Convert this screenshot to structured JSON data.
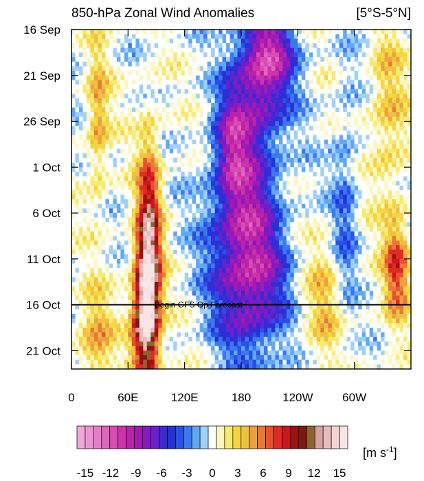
{
  "chart_data": {
    "type": "heatmap",
    "title": "850-hPa Zonal Wind Anomalies",
    "region": "[5°S-5°N]",
    "x_ticks": [
      "0",
      "60E",
      "120E",
      "180",
      "120W",
      "60W"
    ],
    "y_ticks": [
      "16 Sep",
      "21 Sep",
      "26 Sep",
      "1 Oct",
      "6 Oct",
      "11 Oct",
      "16 Oct",
      "21 Oct"
    ],
    "y_tick_days": [
      0,
      5,
      10,
      15,
      20,
      25,
      30,
      35
    ],
    "x_tick_lon": [
      0,
      60,
      120,
      180,
      240,
      300
    ],
    "x_range_lon": [
      0,
      360
    ],
    "y_range_days": [
      0,
      37
    ],
    "forecast_line_day": 30,
    "forecast_label": "Begin GFS Op Forecast",
    "colorbar": {
      "unit": "[m s-1]",
      "tick_labels": [
        "-15",
        "-12",
        "-9",
        "-6",
        "-3",
        "0",
        "3",
        "6",
        "9",
        "12",
        "15"
      ],
      "levels": [
        -16,
        -15,
        -14,
        -13,
        -12,
        -11,
        -10,
        -9,
        -8,
        -7,
        -6,
        -5,
        -4,
        -3,
        -2,
        -1,
        1,
        2,
        3,
        4,
        5,
        6,
        7,
        8,
        9,
        10,
        11,
        12,
        13,
        14,
        15,
        16
      ],
      "colors": [
        "#f0a8dc",
        "#ec94d4",
        "#e67cca",
        "#e064c0",
        "#d84cb4",
        "#cc34aa",
        "#bb22aa",
        "#a41ab0",
        "#8a18be",
        "#6a20cc",
        "#3a2ad2",
        "#2432d8",
        "#2a50e6",
        "#3c78f0",
        "#60a8f4",
        "#a0d0f8",
        "#ffffff",
        "#fcf6c0",
        "#f8ea70",
        "#f4d640",
        "#f0c040",
        "#eea040",
        "#ea7838",
        "#e85030",
        "#e02a24",
        "#c8181c",
        "#a01010",
        "#7c1a10",
        "#8c6430",
        "#d8a0a0",
        "#e8bcbc",
        "#f2d4d4",
        "#f8e4e4"
      ]
    },
    "fields": [
      {
        "lon": 82,
        "day": 24,
        "sx": 9,
        "sy": 8,
        "amp": 13
      },
      {
        "lon": 78,
        "day": 32,
        "sx": 10,
        "sy": 5,
        "amp": 12
      },
      {
        "lon": 28,
        "day": 10,
        "sx": 8,
        "sy": 6,
        "amp": 5
      },
      {
        "lon": 25,
        "day": 34,
        "sx": 14,
        "sy": 4,
        "amp": 5
      },
      {
        "lon": 200,
        "day": 6,
        "sx": 22,
        "sy": 5,
        "amp": -8
      },
      {
        "lon": 180,
        "day": 18,
        "sx": 25,
        "sy": 6,
        "amp": -7
      },
      {
        "lon": 190,
        "day": 28,
        "sx": 28,
        "sy": 6,
        "amp": -9
      },
      {
        "lon": 210,
        "day": 2,
        "sx": 20,
        "sy": 3,
        "amp": -6
      },
      {
        "lon": 170,
        "day": 12,
        "sx": 12,
        "sy": 4,
        "amp": -5
      },
      {
        "lon": 335,
        "day": 9,
        "sx": 14,
        "sy": 7,
        "amp": 4
      },
      {
        "lon": 345,
        "day": 26,
        "sx": 10,
        "sy": 4,
        "amp": 8
      },
      {
        "lon": 290,
        "day": 22,
        "sx": 10,
        "sy": 10,
        "amp": -4
      },
      {
        "lon": 270,
        "day": 30,
        "sx": 20,
        "sy": 5,
        "amp": 4
      }
    ]
  }
}
